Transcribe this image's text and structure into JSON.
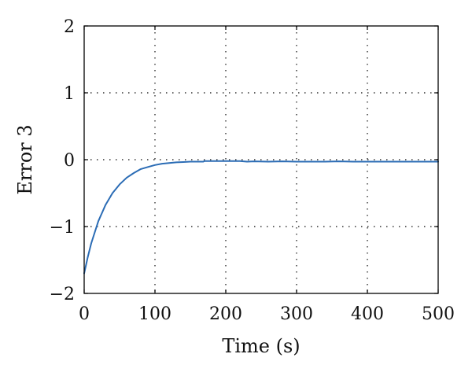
{
  "chart_data": {
    "type": "line",
    "title": "",
    "xlabel": "Time (s)",
    "ylabel": "Error 3",
    "xlim": [
      0,
      500
    ],
    "ylim": [
      -2,
      2
    ],
    "x_ticks": [
      0,
      100,
      200,
      300,
      400,
      500
    ],
    "y_ticks": [
      -2,
      -1,
      0,
      1,
      2
    ],
    "x_tick_labels": [
      "0",
      "100",
      "200",
      "300",
      "400",
      "500"
    ],
    "y_tick_labels": [
      "−2",
      "−1",
      "0",
      "1",
      "2"
    ],
    "grid": true,
    "legend": "none",
    "series": [
      {
        "color": "#2b6cb5",
        "x": [
          0,
          5,
          10,
          20,
          30,
          40,
          50,
          60,
          70,
          80,
          90,
          100,
          110,
          120,
          130,
          140,
          150,
          160,
          168,
          170,
          180,
          200,
          220,
          230,
          240,
          260,
          280,
          300,
          320,
          340,
          360,
          380,
          400,
          420,
          440,
          460,
          480,
          500
        ],
        "y": [
          -1.7,
          -1.46,
          -1.25,
          -0.92,
          -0.68,
          -0.5,
          -0.37,
          -0.27,
          -0.2,
          -0.14,
          -0.11,
          -0.08,
          -0.06,
          -0.05,
          -0.04,
          -0.035,
          -0.03,
          -0.03,
          -0.03,
          -0.02,
          -0.02,
          -0.02,
          -0.02,
          -0.03,
          -0.025,
          -0.03,
          -0.025,
          -0.03,
          -0.03,
          -0.03,
          -0.025,
          -0.03,
          -0.03,
          -0.03,
          -0.03,
          -0.03,
          -0.03,
          -0.03
        ]
      }
    ]
  }
}
